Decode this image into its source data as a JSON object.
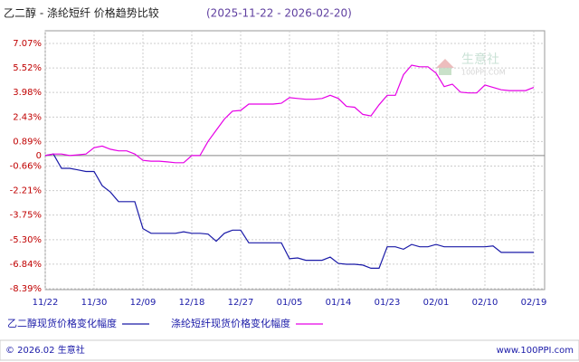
{
  "chart_data": {
    "type": "line",
    "title": "乙二醇 - 涤纶短纤 价格趋势比较",
    "subtitle": "(2025-11-22 - 2026-02-20)",
    "categories": [
      "11/22",
      null,
      null,
      null,
      null,
      null,
      "11/30",
      null,
      null,
      null,
      null,
      null,
      "12/09",
      null,
      null,
      null,
      null,
      null,
      "12/18",
      null,
      null,
      null,
      null,
      null,
      "12/27",
      null,
      null,
      null,
      null,
      null,
      "01/05",
      null,
      null,
      null,
      null,
      null,
      "01/14",
      null,
      null,
      null,
      null,
      null,
      "01/23",
      null,
      null,
      null,
      null,
      null,
      "02/01",
      null,
      null,
      null,
      null,
      null,
      "02/10",
      null,
      null,
      null,
      null,
      null,
      "02/19"
    ],
    "series": [
      {
        "name": "乙二醇现货价格变化幅度",
        "color": "#1a1aa8",
        "values": [
          0,
          0.1,
          -0.8,
          -0.8,
          -0.9,
          -1.0,
          -1.0,
          -1.9,
          -2.3,
          -2.9,
          -2.9,
          -2.9,
          -4.6,
          -4.9,
          -4.9,
          -4.9,
          -4.9,
          -4.8,
          -4.9,
          -4.9,
          -4.95,
          -5.4,
          -4.9,
          -4.7,
          -4.7,
          -5.5,
          -5.5,
          -5.5,
          -5.5,
          -5.5,
          -6.5,
          -6.45,
          -6.6,
          -6.6,
          -6.6,
          -6.4,
          -6.8,
          -6.85,
          -6.85,
          -6.9,
          -7.1,
          -7.1,
          -5.75,
          -5.75,
          -5.9,
          -5.6,
          -5.75,
          -5.75,
          -5.6,
          -5.75,
          -5.75,
          -5.75,
          -5.75,
          -5.75,
          -5.75,
          -5.7,
          -6.1,
          -6.1,
          -6.1,
          -6.1,
          -6.1
        ]
      },
      {
        "name": "涤纶短纤现货价格变化幅度",
        "color": "#e600e6",
        "values": [
          0,
          0.1,
          0.1,
          0,
          0.05,
          0.1,
          0.5,
          0.6,
          0.4,
          0.3,
          0.3,
          0.1,
          -0.3,
          -0.35,
          -0.35,
          -0.4,
          -0.45,
          -0.45,
          0,
          0,
          0.9,
          1.6,
          2.3,
          2.8,
          2.85,
          3.25,
          3.25,
          3.25,
          3.25,
          3.3,
          3.65,
          3.6,
          3.55,
          3.55,
          3.6,
          3.8,
          3.6,
          3.1,
          3.05,
          2.6,
          2.5,
          3.2,
          3.8,
          3.8,
          5.1,
          5.7,
          5.6,
          5.6,
          5.2,
          4.35,
          4.5,
          4.0,
          3.95,
          3.95,
          4.45,
          4.3,
          4.15,
          4.1,
          4.1,
          4.1,
          4.3
        ]
      }
    ],
    "ylim": [
      -8.39,
      7.07
    ],
    "yticks": [
      {
        "value": 7.07,
        "label": "7.07%"
      },
      {
        "value": 5.52,
        "label": "5.52%"
      },
      {
        "value": 3.98,
        "label": "3.98%"
      },
      {
        "value": 2.43,
        "label": "2.43%"
      },
      {
        "value": 0.89,
        "label": "0.89%"
      },
      0,
      {
        "value": -0.66,
        "label": "-0.66%"
      },
      {
        "value": -2.21,
        "label": "-2.21%"
      },
      {
        "value": -3.75,
        "label": "-3.75%"
      },
      {
        "value": -5.3,
        "label": "-5.30%"
      },
      {
        "value": -6.84,
        "label": "-6.84%"
      },
      {
        "value": -8.39,
        "label": "-8.39%"
      }
    ],
    "grid": true,
    "legend": "bottom"
  },
  "watermark": {
    "title": "生意社",
    "subtitle": "100PPI.COM"
  },
  "footer": {
    "left": "© 2026.02 生意社",
    "right": "www.100PPI.com"
  }
}
